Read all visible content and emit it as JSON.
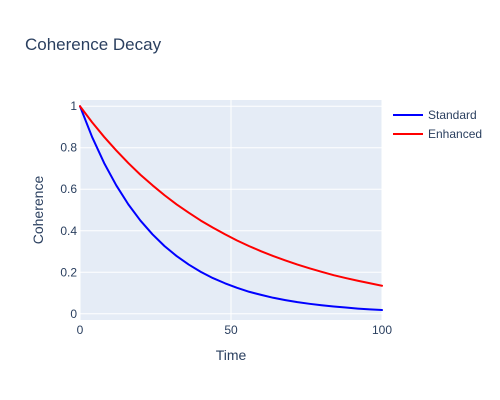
{
  "chart_data": {
    "type": "line",
    "title": "Coherence Decay",
    "xlabel": "Time",
    "ylabel": "Coherence",
    "xlim": [
      0,
      100
    ],
    "ylim": [
      -0.03,
      1.03
    ],
    "xticks": [
      0,
      50,
      100
    ],
    "yticks": [
      0,
      0.2,
      0.4,
      0.6,
      0.8,
      1
    ],
    "grid": true,
    "legend_position": "top-right",
    "x": [
      0,
      4,
      8,
      12,
      16,
      20,
      24,
      28,
      32,
      36,
      40,
      44,
      48,
      52,
      56,
      60,
      64,
      68,
      72,
      76,
      80,
      84,
      88,
      92,
      96,
      100
    ],
    "series": [
      {
        "name": "Standard",
        "color": "#0000ff",
        "values": [
          1,
          0.852,
          0.726,
          0.619,
          0.527,
          0.449,
          0.383,
          0.326,
          0.278,
          0.237,
          0.202,
          0.172,
          0.147,
          0.125,
          0.106,
          0.091,
          0.077,
          0.066,
          0.056,
          0.048,
          0.041,
          0.035,
          0.03,
          0.025,
          0.021,
          0.018
        ]
      },
      {
        "name": "Enhanced",
        "color": "#ff0000",
        "values": [
          1,
          0.923,
          0.852,
          0.787,
          0.726,
          0.67,
          0.619,
          0.571,
          0.527,
          0.487,
          0.449,
          0.415,
          0.383,
          0.353,
          0.326,
          0.301,
          0.278,
          0.257,
          0.237,
          0.219,
          0.202,
          0.186,
          0.172,
          0.159,
          0.147,
          0.135
        ]
      }
    ]
  }
}
